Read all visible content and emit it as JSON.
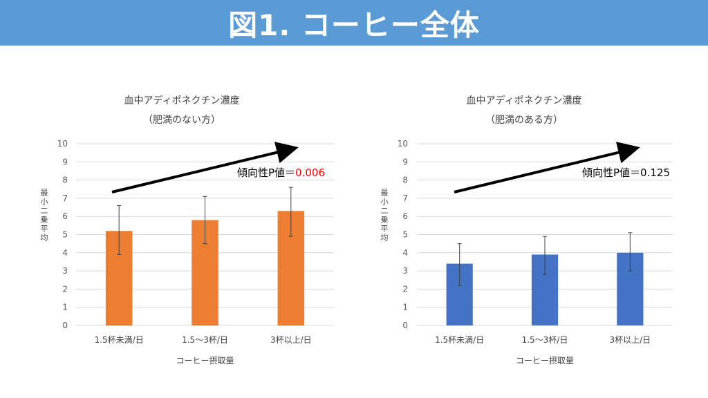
{
  "page": {
    "title": "図1. コーヒー全体"
  },
  "chart_data": [
    {
      "type": "bar",
      "title": "血中アディポネクチン濃度",
      "subtitle": "（肥満のない方）",
      "xlabel": "コーヒー摂取量",
      "ylabel": "最小二乗平均",
      "categories": [
        "1.5杯未満/日",
        "1.5〜3杯/日",
        "3杯以上/日"
      ],
      "values": [
        5.2,
        5.8,
        6.3
      ],
      "error_low": [
        3.9,
        4.5,
        4.9
      ],
      "error_high": [
        6.6,
        7.1,
        7.6
      ],
      "ylim": [
        0,
        10
      ],
      "yticks": [
        0,
        1,
        2,
        3,
        4,
        5,
        6,
        7,
        8,
        9,
        10
      ],
      "grid": true,
      "bar_color": "#ed7d31",
      "trend_arrow": true,
      "annotation": {
        "label": "傾向性P値＝",
        "value": "0.006",
        "value_color": "#ff0000"
      }
    },
    {
      "type": "bar",
      "title": "血中アディポネクチン濃度",
      "subtitle": "（肥満のある方）",
      "xlabel": "コーヒー摂取量",
      "ylabel": "最小二乗平均",
      "categories": [
        "1.5杯未満/日",
        "1.5〜3杯/日",
        "3杯以上/日"
      ],
      "values": [
        3.4,
        3.9,
        4.0
      ],
      "error_low": [
        2.2,
        2.8,
        3.0
      ],
      "error_high": [
        4.5,
        4.9,
        5.1
      ],
      "ylim": [
        0,
        10
      ],
      "yticks": [
        0,
        1,
        2,
        3,
        4,
        5,
        6,
        7,
        8,
        9,
        10
      ],
      "grid": true,
      "bar_color": "#4472c4",
      "trend_arrow": true,
      "annotation": {
        "label": "傾向性P値＝",
        "value": "0.125",
        "value_color": "#000000"
      }
    }
  ]
}
